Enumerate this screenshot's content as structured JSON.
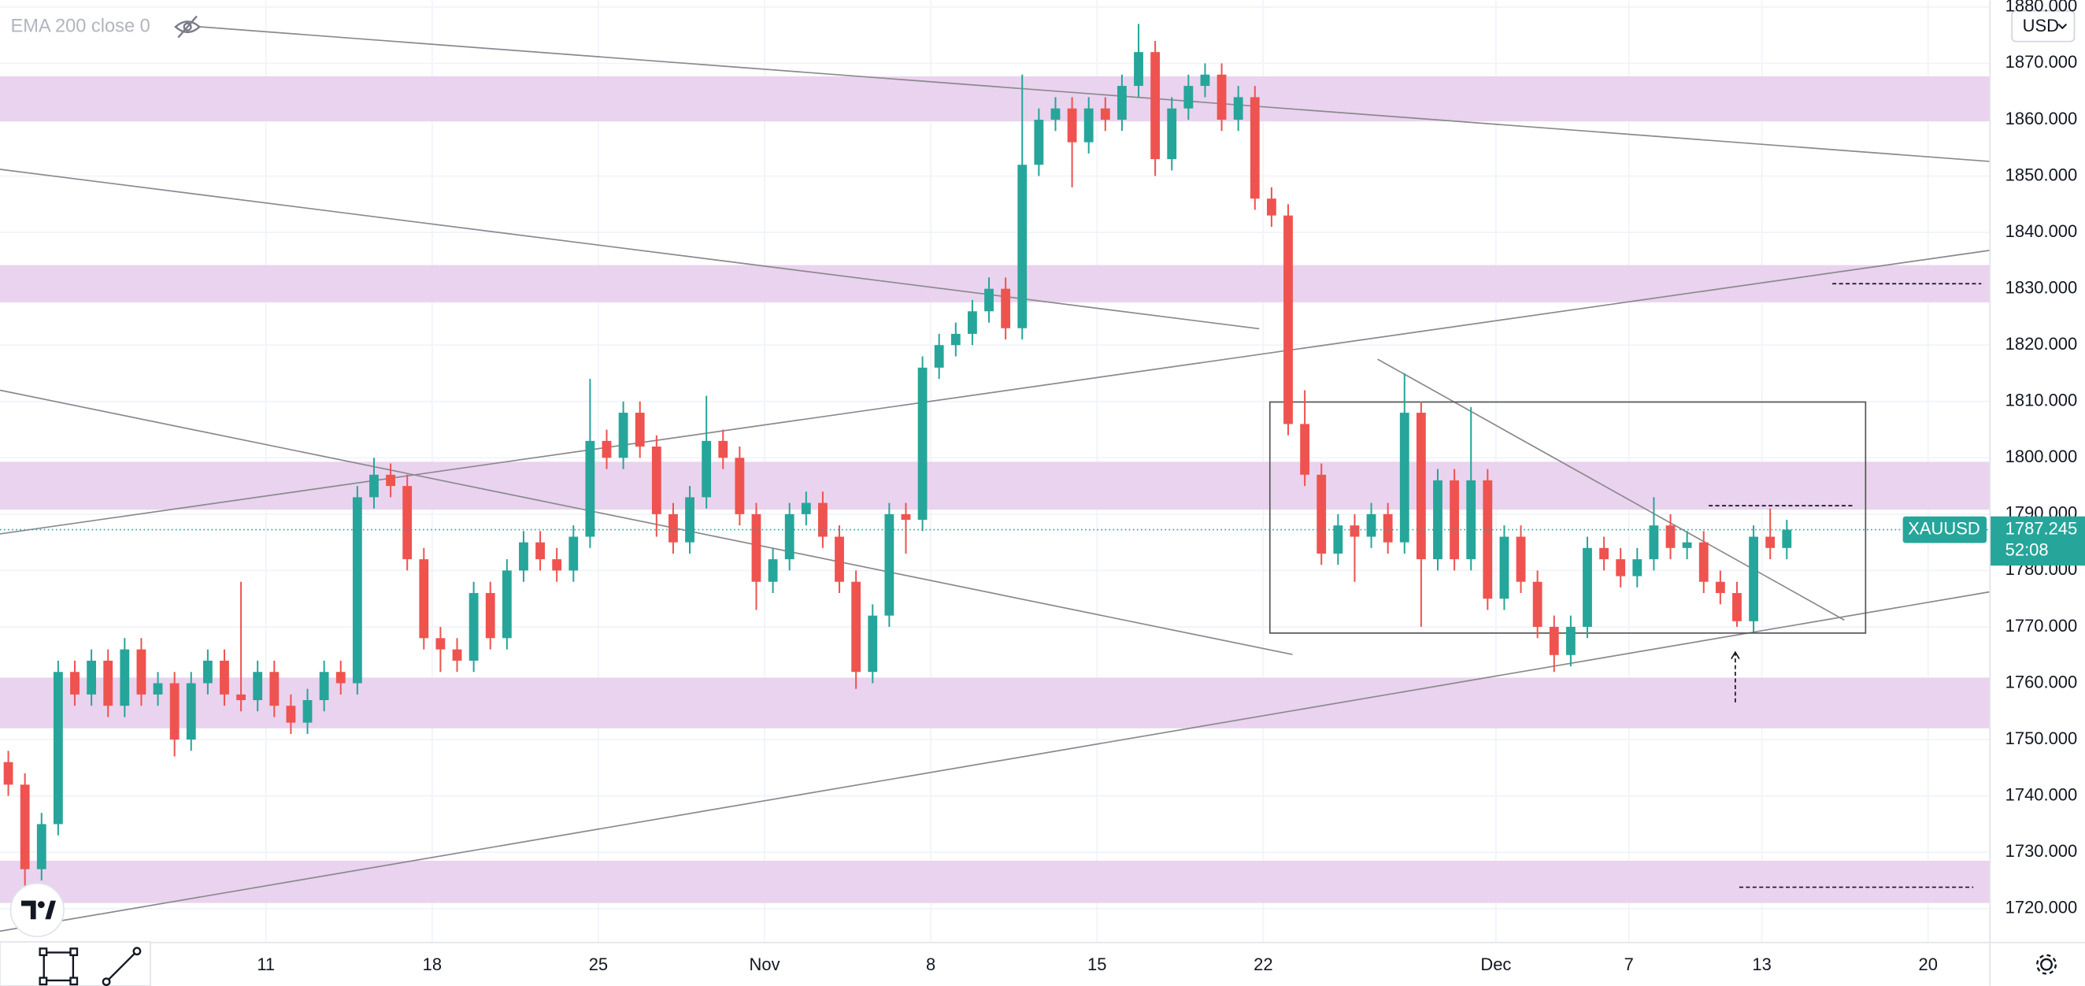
{
  "chart_data": {
    "type": "candlestick",
    "indicator": "EMA 200 close 0",
    "currency": "USD",
    "symbol": "XAUUSD",
    "last_price": 1787.245,
    "countdown": "52:08",
    "up_color": "#26a69a",
    "down_color": "#ef5350",
    "zone_color": "#ead3ee",
    "line_color": "#8a8a8e",
    "xlim": [
      0,
      59.84
    ],
    "ylim": [
      1714.1,
      1881.2
    ],
    "grid": true,
    "xticks": [
      {
        "value": 8,
        "label": "11"
      },
      {
        "value": 13,
        "label": "18"
      },
      {
        "value": 18,
        "label": "25"
      },
      {
        "value": 23,
        "label": "Nov"
      },
      {
        "value": 28,
        "label": "8"
      },
      {
        "value": 33,
        "label": "15"
      },
      {
        "value": 38,
        "label": "22"
      },
      {
        "value": 45,
        "label": "Dec"
      },
      {
        "value": 49,
        "label": "7"
      },
      {
        "value": 53,
        "label": "13"
      },
      {
        "value": 58,
        "label": "20"
      }
    ],
    "yticks": [
      {
        "value": 1720,
        "label": "1720.000"
      },
      {
        "value": 1730,
        "label": "1730.000"
      },
      {
        "value": 1740,
        "label": "1740.000"
      },
      {
        "value": 1750,
        "label": "1750.000"
      },
      {
        "value": 1760,
        "label": "1760.000"
      },
      {
        "value": 1770,
        "label": "1770.000"
      },
      {
        "value": 1780,
        "label": "1780.000"
      },
      {
        "value": 1790,
        "label": "1790.000"
      },
      {
        "value": 1800,
        "label": "1800.000"
      },
      {
        "value": 1810,
        "label": "1810.000"
      },
      {
        "value": 1820,
        "label": "1820.000"
      },
      {
        "value": 1830,
        "label": "1830.000"
      },
      {
        "value": 1840,
        "label": "1840.000"
      },
      {
        "value": 1850,
        "label": "1850.000"
      },
      {
        "value": 1860,
        "label": "1860.000"
      },
      {
        "value": 1870,
        "label": "1870.000"
      },
      {
        "value": 1880,
        "label": "1880.000"
      }
    ],
    "x": [
      0.25,
      0.75,
      1.25,
      1.75,
      2.25,
      2.75,
      3.25,
      3.75,
      4.25,
      4.75,
      5.25,
      5.75,
      6.25,
      6.75,
      7.25,
      7.75,
      8.25,
      8.75,
      9.25,
      9.75,
      10.25,
      10.75,
      11.25,
      11.75,
      12.25,
      12.75,
      13.25,
      13.75,
      14.25,
      14.75,
      15.25,
      15.75,
      16.25,
      16.75,
      17.25,
      17.75,
      18.25,
      18.75,
      19.25,
      19.75,
      20.25,
      20.75,
      21.25,
      21.75,
      22.25,
      22.75,
      23.25,
      23.75,
      24.25,
      24.75,
      25.25,
      25.75,
      26.25,
      26.75,
      27.25,
      27.75,
      28.25,
      28.75,
      29.25,
      29.75,
      30.25,
      30.75,
      31.25,
      31.75,
      32.25,
      32.75,
      33.25,
      33.75,
      34.25,
      34.75,
      35.25,
      35.75,
      36.25,
      36.75,
      37.25,
      37.75,
      38.25,
      38.75,
      39.25,
      39.75,
      40.25,
      40.75,
      41.25,
      41.75,
      42.25,
      42.75,
      43.25,
      43.75,
      44.25,
      44.75,
      45.25,
      45.75,
      46.25,
      46.75,
      47.25,
      47.75,
      48.25,
      48.75,
      49.25,
      49.75,
      50.25,
      50.75,
      51.25,
      51.75,
      52.25,
      52.75,
      53.25,
      53.75
    ],
    "open": [
      1746,
      1742,
      1727,
      1735,
      1762,
      1758,
      1764,
      1756,
      1766,
      1758,
      1760,
      1750,
      1760,
      1764,
      1758,
      1757,
      1762,
      1756,
      1753,
      1757,
      1762,
      1760,
      1793,
      1797,
      1795,
      1782,
      1768,
      1766,
      1764,
      1776,
      1768,
      1780,
      1785,
      1782,
      1780,
      1786,
      1803,
      1800,
      1808,
      1802,
      1790,
      1785,
      1793,
      1803,
      1800,
      1790,
      1778,
      1782,
      1790,
      1792,
      1786,
      1778,
      1762,
      1772,
      1790,
      1789,
      1816,
      1820,
      1822,
      1826,
      1830,
      1823,
      1852,
      1860,
      1862,
      1856,
      1862,
      1860,
      1866,
      1872,
      1853,
      1862,
      1866,
      1868,
      1860,
      1864,
      1846,
      1843,
      1806,
      1797,
      1783,
      1788,
      1786,
      1790,
      1785,
      1808,
      1782,
      1796,
      1782,
      1796,
      1775,
      1786,
      1778,
      1770,
      1765,
      1770,
      1784,
      1782,
      1779,
      1782,
      1788,
      1784,
      1785,
      1778,
      1776,
      1771,
      1786,
      1784
    ],
    "high": [
      1748,
      1744,
      1737,
      1764,
      1764,
      1766,
      1766,
      1768,
      1768,
      1762,
      1762,
      1762,
      1766,
      1766,
      1778,
      1764,
      1764,
      1758,
      1759,
      1764,
      1764,
      1795,
      1800,
      1799,
      1797,
      1784,
      1770,
      1768,
      1778,
      1778,
      1782,
      1787,
      1787,
      1784,
      1788,
      1814,
      1805,
      1810,
      1810,
      1804,
      1792,
      1795,
      1811,
      1805,
      1802,
      1792,
      1784,
      1792,
      1794,
      1794,
      1788,
      1780,
      1774,
      1792,
      1792,
      1818,
      1822,
      1824,
      1828,
      1832,
      1832,
      1868,
      1862,
      1864,
      1864,
      1864,
      1864,
      1868,
      1877,
      1874,
      1864,
      1868,
      1870,
      1870,
      1866,
      1866,
      1848,
      1845,
      1812,
      1799,
      1790,
      1790,
      1792,
      1792,
      1815,
      1810,
      1798,
      1798,
      1809,
      1798,
      1788,
      1788,
      1780,
      1772,
      1772,
      1786,
      1786,
      1784,
      1784,
      1793,
      1790,
      1787,
      1787,
      1780,
      1778,
      1788,
      1791,
      1789
    ],
    "low": [
      1740,
      1722,
      1725,
      1733,
      1756,
      1756,
      1754,
      1754,
      1756,
      1756,
      1747,
      1748,
      1758,
      1756,
      1755,
      1755,
      1754,
      1751,
      1751,
      1755,
      1758,
      1758,
      1791,
      1793,
      1780,
      1766,
      1762,
      1762,
      1762,
      1766,
      1766,
      1778,
      1780,
      1778,
      1778,
      1784,
      1798,
      1798,
      1800,
      1786,
      1783,
      1783,
      1791,
      1798,
      1788,
      1773,
      1776,
      1780,
      1788,
      1784,
      1776,
      1759,
      1760,
      1770,
      1783,
      1787,
      1814,
      1818,
      1820,
      1824,
      1821,
      1821,
      1850,
      1858,
      1848,
      1854,
      1858,
      1858,
      1864,
      1850,
      1851,
      1860,
      1864,
      1858,
      1858,
      1844,
      1841,
      1804,
      1795,
      1781,
      1781,
      1778,
      1784,
      1783,
      1783,
      1770,
      1780,
      1780,
      1780,
      1773,
      1773,
      1776,
      1768,
      1762,
      1763,
      1768,
      1780,
      1777,
      1777,
      1780,
      1782,
      1782,
      1776,
      1774,
      1770,
      1769,
      1782,
      1782
    ],
    "close": [
      1742,
      1727,
      1735,
      1762,
      1758,
      1764,
      1756,
      1766,
      1758,
      1760,
      1750,
      1760,
      1764,
      1758,
      1757,
      1762,
      1756,
      1753,
      1757,
      1762,
      1760,
      1793,
      1797,
      1795,
      1782,
      1768,
      1766,
      1764,
      1776,
      1768,
      1780,
      1785,
      1782,
      1780,
      1786,
      1803,
      1800,
      1808,
      1802,
      1790,
      1785,
      1793,
      1803,
      1800,
      1790,
      1778,
      1782,
      1790,
      1792,
      1786,
      1778,
      1762,
      1772,
      1790,
      1789,
      1816,
      1820,
      1822,
      1826,
      1830,
      1823,
      1852,
      1860,
      1862,
      1856,
      1862,
      1860,
      1866,
      1872,
      1853,
      1862,
      1866,
      1868,
      1860,
      1864,
      1846,
      1843,
      1806,
      1797,
      1783,
      1788,
      1786,
      1790,
      1785,
      1808,
      1782,
      1796,
      1782,
      1796,
      1775,
      1786,
      1778,
      1770,
      1765,
      1770,
      1784,
      1782,
      1779,
      1782,
      1788,
      1784,
      1785,
      1778,
      1776,
      1771,
      1786,
      1784,
      1787.245
    ],
    "zones": [
      [
        1859.7,
        1867.7
      ],
      [
        1827.6,
        1834.2
      ],
      [
        1790.8,
        1799.3
      ],
      [
        1752,
        1761
      ],
      [
        1721,
        1728.5
      ]
    ],
    "trend_lines": [
      {
        "x": [
          6,
          59.84
        ],
        "y": [
          1876.5,
          1852.6
        ]
      },
      {
        "x": [
          0,
          37.88
        ],
        "y": [
          1851.2,
          1822.9
        ]
      },
      {
        "x": [
          0,
          38.88
        ],
        "y": [
          1812.0,
          1765.1
        ]
      },
      {
        "x": [
          0,
          59.84
        ],
        "y": [
          1786.5,
          1836.8
        ]
      },
      {
        "x": [
          0,
          59.84
        ],
        "y": [
          1716.0,
          1776.2
        ]
      },
      {
        "x": [
          41.44,
          55.48
        ],
        "y": [
          1817.5,
          1771.2
        ]
      }
    ],
    "box": {
      "x": [
        38.2,
        56.12
      ],
      "y": [
        1768.9,
        1809.9
      ]
    },
    "levels": [
      {
        "x": [
          55.12,
          59.6
        ],
        "y": 1830.9
      },
      {
        "x": [
          51.4,
          55.8
        ],
        "y": 1791.5
      },
      {
        "x": [
          52.32,
          59.36
        ],
        "y": 1723.8
      }
    ],
    "arrow": {
      "x": 52.2,
      "y": [
        1756.6,
        1765.5
      ]
    }
  }
}
